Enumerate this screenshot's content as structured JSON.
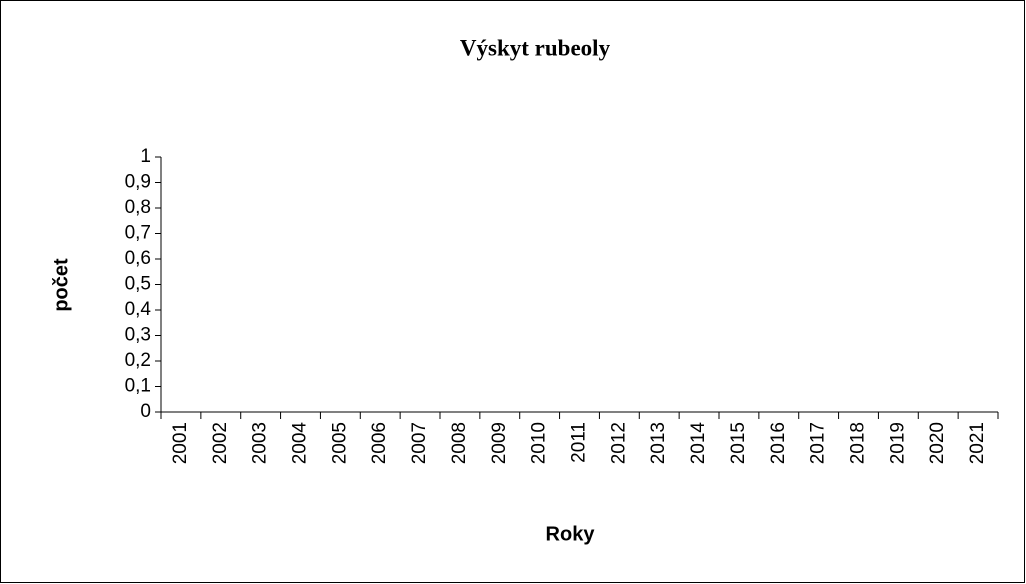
{
  "chart_data": {
    "type": "bar",
    "title": "Výskyt rubeoly",
    "x_label": "Roky",
    "y_label": "počet",
    "categories": [
      "2001",
      "2002",
      "2003",
      "2004",
      "2005",
      "2006",
      "2007",
      "2008",
      "2009",
      "2010",
      "2011",
      "2012",
      "2013",
      "2014",
      "2015",
      "2016",
      "2017",
      "2018",
      "2019",
      "2020",
      "2021"
    ],
    "values": [
      0,
      0,
      0,
      0,
      0,
      0,
      0,
      0,
      0,
      0,
      0,
      0,
      0,
      0,
      0,
      0,
      0,
      0,
      0,
      0,
      0
    ],
    "color": "#4472c4",
    "ylim": [
      0,
      1
    ],
    "yticks": [
      0,
      {
        "value": 0.1,
        "label": "0,1"
      },
      {
        "value": 0.2,
        "label": "0,2"
      },
      {
        "value": 0.3,
        "label": "0,3"
      },
      {
        "value": 0.4,
        "label": "0,4"
      },
      {
        "value": 0.5,
        "label": "0,5"
      },
      {
        "value": 0.6,
        "label": "0,6"
      },
      {
        "value": 0.7,
        "label": "0,7"
      },
      {
        "value": 0.8,
        "label": "0,8"
      },
      {
        "value": 0.9,
        "label": "0,9"
      },
      1
    ],
    "grid": false
  }
}
